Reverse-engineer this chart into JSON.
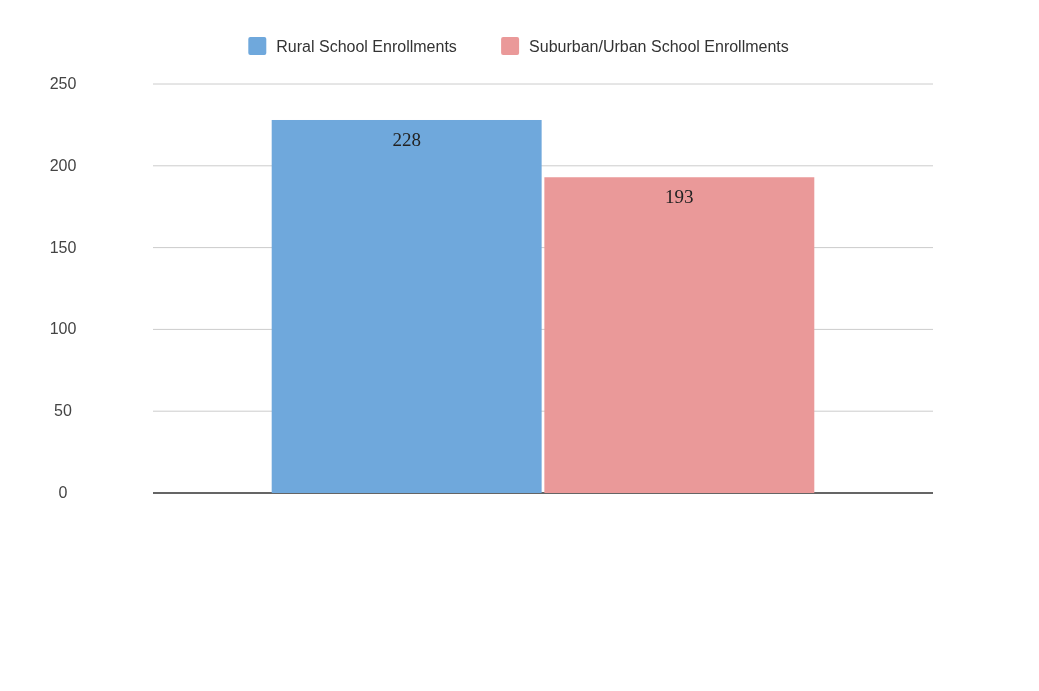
{
  "chart_data": {
    "type": "bar",
    "categories": [
      null
    ],
    "series": [
      {
        "name": "Rural School Enrollments",
        "color": "#6fa8dc",
        "values": [
          228
        ]
      },
      {
        "name": "Suburban/Urban School Enrollments",
        "color": "#ea9999",
        "values": [
          193
        ]
      }
    ],
    "ylim": [
      0,
      250
    ],
    "yticks": [
      0,
      50,
      100,
      150,
      200,
      250
    ],
    "grid": "y",
    "legend": "top",
    "data_labels": true
  }
}
